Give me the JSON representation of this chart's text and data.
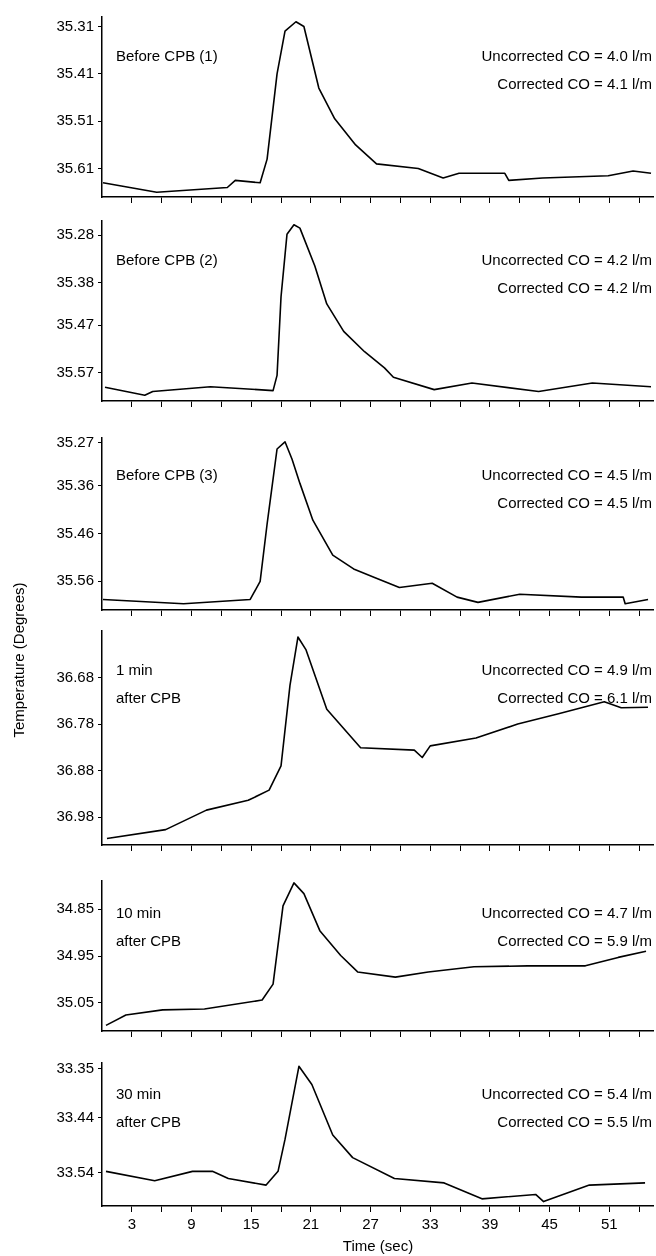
{
  "chart_data": [
    {
      "type": "line",
      "annotations": [
        "Before CPB (1)",
        "Uncorrected CO = 4.0 l/m",
        "Corrected CO = 4.1 l/m"
      ],
      "xlim": [
        0,
        55.5
      ],
      "xticks": [
        {
          "value": 3,
          "label": null
        },
        {
          "value": 6,
          "label": null
        },
        {
          "value": 9,
          "label": null
        },
        {
          "value": 12,
          "label": null
        },
        {
          "value": 15,
          "label": null
        },
        {
          "value": 18,
          "label": null
        },
        {
          "value": 21,
          "label": null
        },
        {
          "value": 24,
          "label": null
        },
        {
          "value": 27,
          "label": null
        },
        {
          "value": 30,
          "label": null
        },
        {
          "value": 33,
          "label": null
        },
        {
          "value": 36,
          "label": null
        },
        {
          "value": 39,
          "label": null
        },
        {
          "value": 42,
          "label": null
        },
        {
          "value": 45,
          "label": null
        },
        {
          "value": 48,
          "label": null
        },
        {
          "value": 51,
          "label": null
        },
        {
          "value": 54,
          "label": null
        }
      ],
      "ylim": [
        35.67,
        35.29
      ],
      "yticks": [
        35.31,
        35.41,
        35.51,
        35.61
      ],
      "tick_labels": "y",
      "grid": false,
      "legend": false,
      "marker": "none",
      "line_style": "solid",
      "series": [
        {
          "color": "#000000",
          "x": [
            0.1,
            5.5,
            12.6,
            13.4,
            15.9,
            16.6,
            17.6,
            18.4,
            19.5,
            20.3,
            21.8,
            23.4,
            25.5,
            27.6,
            31.8,
            34.3,
            35.9,
            40.5,
            40.9,
            44.3,
            50.9,
            53.4,
            55.2
          ],
          "values": [
            35.64,
            35.66,
            35.65,
            35.635,
            35.64,
            35.59,
            35.41,
            35.32,
            35.3,
            35.31,
            35.44,
            35.505,
            35.56,
            35.6,
            35.61,
            35.63,
            35.62,
            35.62,
            35.635,
            35.63,
            35.625,
            35.615,
            35.62
          ]
        }
      ]
    },
    {
      "type": "line",
      "annotations": [
        "Before CPB (2)",
        "Uncorrected CO = 4.2 l/m",
        "Corrected CO = 4.2 l/m"
      ],
      "xlim": [
        0,
        55.5
      ],
      "xticks": [
        {
          "value": 3,
          "label": null
        },
        {
          "value": 6,
          "label": null
        },
        {
          "value": 9,
          "label": null
        },
        {
          "value": 12,
          "label": null
        },
        {
          "value": 15,
          "label": null
        },
        {
          "value": 18,
          "label": null
        },
        {
          "value": 21,
          "label": null
        },
        {
          "value": 24,
          "label": null
        },
        {
          "value": 27,
          "label": null
        },
        {
          "value": 30,
          "label": null
        },
        {
          "value": 33,
          "label": null
        },
        {
          "value": 36,
          "label": null
        },
        {
          "value": 39,
          "label": null
        },
        {
          "value": 42,
          "label": null
        },
        {
          "value": 45,
          "label": null
        },
        {
          "value": 48,
          "label": null
        },
        {
          "value": 51,
          "label": null
        },
        {
          "value": 54,
          "label": null
        }
      ],
      "ylim": [
        35.63,
        35.25
      ],
      "yticks": [
        35.28,
        35.38,
        35.47,
        35.57
      ],
      "tick_labels": "y",
      "grid": false,
      "legend": false,
      "marker": "none",
      "line_style": "solid",
      "series": [
        {
          "color": "#000000",
          "x": [
            0.3,
            4.3,
            5.1,
            10.9,
            17.2,
            17.6,
            18.0,
            18.6,
            19.3,
            19.9,
            21.4,
            22.6,
            24.3,
            26.4,
            28.4,
            29.3,
            33.4,
            37.2,
            43.9,
            49.3,
            55.2
          ],
          "values": [
            35.601,
            35.618,
            35.61,
            35.6,
            35.608,
            35.576,
            35.41,
            35.278,
            35.258,
            35.265,
            35.345,
            35.425,
            35.483,
            35.526,
            35.56,
            35.58,
            35.606,
            35.592,
            35.61,
            35.592,
            35.6
          ]
        }
      ]
    },
    {
      "type": "line",
      "annotations": [
        "Before CPB (3)",
        "Uncorrected CO = 4.5 l/m",
        "Corrected CO = 4.5 l/m"
      ],
      "xlim": [
        0,
        55.5
      ],
      "xticks": [
        {
          "value": 3,
          "label": null
        },
        {
          "value": 6,
          "label": null
        },
        {
          "value": 9,
          "label": null
        },
        {
          "value": 12,
          "label": null
        },
        {
          "value": 15,
          "label": null
        },
        {
          "value": 18,
          "label": null
        },
        {
          "value": 21,
          "label": null
        },
        {
          "value": 24,
          "label": null
        },
        {
          "value": 27,
          "label": null
        },
        {
          "value": 30,
          "label": null
        },
        {
          "value": 33,
          "label": null
        },
        {
          "value": 36,
          "label": null
        },
        {
          "value": 39,
          "label": null
        },
        {
          "value": 42,
          "label": null
        },
        {
          "value": 45,
          "label": null
        },
        {
          "value": 48,
          "label": null
        },
        {
          "value": 51,
          "label": null
        },
        {
          "value": 54,
          "label": null
        }
      ],
      "ylim": [
        35.62,
        35.26
      ],
      "yticks": [
        35.27,
        35.36,
        35.46,
        35.56
      ],
      "tick_labels": "y",
      "grid": false,
      "legend": false,
      "marker": "none",
      "line_style": "solid",
      "series": [
        {
          "color": "#000000",
          "x": [
            0.1,
            8.2,
            14.9,
            15.9,
            16.6,
            17.6,
            18.4,
            19.1,
            19.9,
            21.2,
            23.2,
            25.3,
            27.4,
            29.9,
            33.2,
            35.7,
            37.8,
            42.0,
            48.2,
            52.4,
            52.6,
            54.9
          ],
          "values": [
            35.598,
            35.607,
            35.598,
            35.56,
            35.44,
            35.283,
            35.268,
            35.304,
            35.355,
            35.432,
            35.505,
            35.534,
            35.552,
            35.573,
            35.564,
            35.593,
            35.604,
            35.587,
            35.593,
            35.593,
            35.607,
            35.598
          ]
        }
      ]
    },
    {
      "type": "line",
      "ylabel": "Temperature (Degrees)",
      "annotations": [
        "1 min\nafter CPB",
        "Uncorrected CO = 4.9 l/m",
        "Corrected CO = 6.1 l/m"
      ],
      "xlim": [
        0,
        55.5
      ],
      "xticks": [
        {
          "value": 3,
          "label": null
        },
        {
          "value": 6,
          "label": null
        },
        {
          "value": 9,
          "label": null
        },
        {
          "value": 12,
          "label": null
        },
        {
          "value": 15,
          "label": null
        },
        {
          "value": 18,
          "label": null
        },
        {
          "value": 21,
          "label": null
        },
        {
          "value": 24,
          "label": null
        },
        {
          "value": 27,
          "label": null
        },
        {
          "value": 30,
          "label": null
        },
        {
          "value": 33,
          "label": null
        },
        {
          "value": 36,
          "label": null
        },
        {
          "value": 39,
          "label": null
        },
        {
          "value": 42,
          "label": null
        },
        {
          "value": 45,
          "label": null
        },
        {
          "value": 48,
          "label": null
        },
        {
          "value": 51,
          "label": null
        },
        {
          "value": 54,
          "label": null
        }
      ],
      "ylim": [
        37.04,
        36.58
      ],
      "yticks": [
        36.68,
        36.78,
        36.88,
        36.98
      ],
      "tick_labels": "y",
      "grid": false,
      "legend": false,
      "marker": "none",
      "line_style": "solid",
      "series": [
        {
          "color": "#000000",
          "x": [
            0.5,
            6.4,
            10.5,
            14.7,
            16.8,
            18.0,
            18.9,
            19.7,
            20.5,
            22.6,
            26.0,
            31.4,
            32.2,
            33.0,
            37.6,
            41.8,
            45.9,
            50.5,
            52.2,
            54.9
          ],
          "values": [
            37.026,
            37.007,
            36.965,
            36.944,
            36.922,
            36.87,
            36.697,
            36.593,
            36.62,
            36.748,
            36.831,
            36.836,
            36.852,
            36.827,
            36.81,
            36.78,
            36.758,
            36.732,
            36.745,
            36.744
          ]
        }
      ]
    },
    {
      "type": "line",
      "annotations": [
        "10 min\nafter CPB",
        "Uncorrected CO = 4.7 l/m",
        "Corrected CO = 5.9 l/m"
      ],
      "xlim": [
        0,
        55.5
      ],
      "xticks": [
        {
          "value": 3,
          "label": null
        },
        {
          "value": 6,
          "label": null
        },
        {
          "value": 9,
          "label": null
        },
        {
          "value": 12,
          "label": null
        },
        {
          "value": 15,
          "label": null
        },
        {
          "value": 18,
          "label": null
        },
        {
          "value": 21,
          "label": null
        },
        {
          "value": 24,
          "label": null
        },
        {
          "value": 27,
          "label": null
        },
        {
          "value": 30,
          "label": null
        },
        {
          "value": 33,
          "label": null
        },
        {
          "value": 36,
          "label": null
        },
        {
          "value": 39,
          "label": null
        },
        {
          "value": 42,
          "label": null
        },
        {
          "value": 45,
          "label": null
        },
        {
          "value": 48,
          "label": null
        },
        {
          "value": 51,
          "label": null
        },
        {
          "value": 54,
          "label": null
        }
      ],
      "ylim": [
        35.11,
        34.79
      ],
      "yticks": [
        34.85,
        34.95,
        35.05
      ],
      "tick_labels": "y",
      "grid": false,
      "legend": false,
      "marker": "none",
      "line_style": "solid",
      "series": [
        {
          "color": "#000000",
          "x": [
            0.4,
            2.4,
            6.1,
            10.3,
            16.1,
            17.2,
            18.2,
            19.3,
            20.3,
            21.9,
            24.0,
            25.7,
            29.5,
            32.8,
            37.4,
            42.8,
            48.6,
            51.9,
            54.7
          ],
          "values": [
            35.098,
            35.076,
            35.065,
            35.063,
            35.044,
            35.01,
            34.843,
            34.794,
            34.817,
            34.896,
            34.949,
            34.984,
            34.995,
            34.984,
            34.973,
            34.971,
            34.971,
            34.953,
            34.94
          ]
        }
      ]
    },
    {
      "type": "line",
      "xlabel": "Time (sec)",
      "annotations": [
        "30 min\nafter CPB",
        "Uncorrected CO = 5.4 l/m",
        "Corrected CO = 5.5 l/m"
      ],
      "xlim": [
        0,
        55.5
      ],
      "xticks": [
        3,
        {
          "value": 6,
          "label": null
        },
        9,
        {
          "value": 12,
          "label": null
        },
        15,
        {
          "value": 18,
          "label": null
        },
        21,
        {
          "value": 24,
          "label": null
        },
        27,
        {
          "value": 30,
          "label": null
        },
        33,
        {
          "value": 36,
          "label": null
        },
        39,
        {
          "value": 42,
          "label": null
        },
        45,
        {
          "value": 48,
          "label": null
        },
        51,
        {
          "value": 54,
          "label": null
        }
      ],
      "ylim": [
        33.6,
        33.34
      ],
      "yticks": [
        33.35,
        33.44,
        33.54
      ],
      "grid": false,
      "legend": false,
      "marker": "none",
      "line_style": "solid",
      "series": [
        {
          "color": "#000000",
          "x": [
            0.4,
            5.3,
            9.1,
            11.1,
            12.7,
            16.5,
            17.7,
            18.4,
            19.8,
            21.1,
            23.2,
            25.2,
            29.4,
            34.4,
            38.2,
            43.6,
            44.4,
            49.0,
            54.6
          ],
          "values": [
            33.537,
            33.554,
            33.537,
            33.537,
            33.55,
            33.562,
            33.537,
            33.479,
            33.346,
            33.379,
            33.471,
            33.512,
            33.55,
            33.558,
            33.587,
            33.579,
            33.592,
            33.562,
            33.558
          ]
        }
      ]
    }
  ]
}
